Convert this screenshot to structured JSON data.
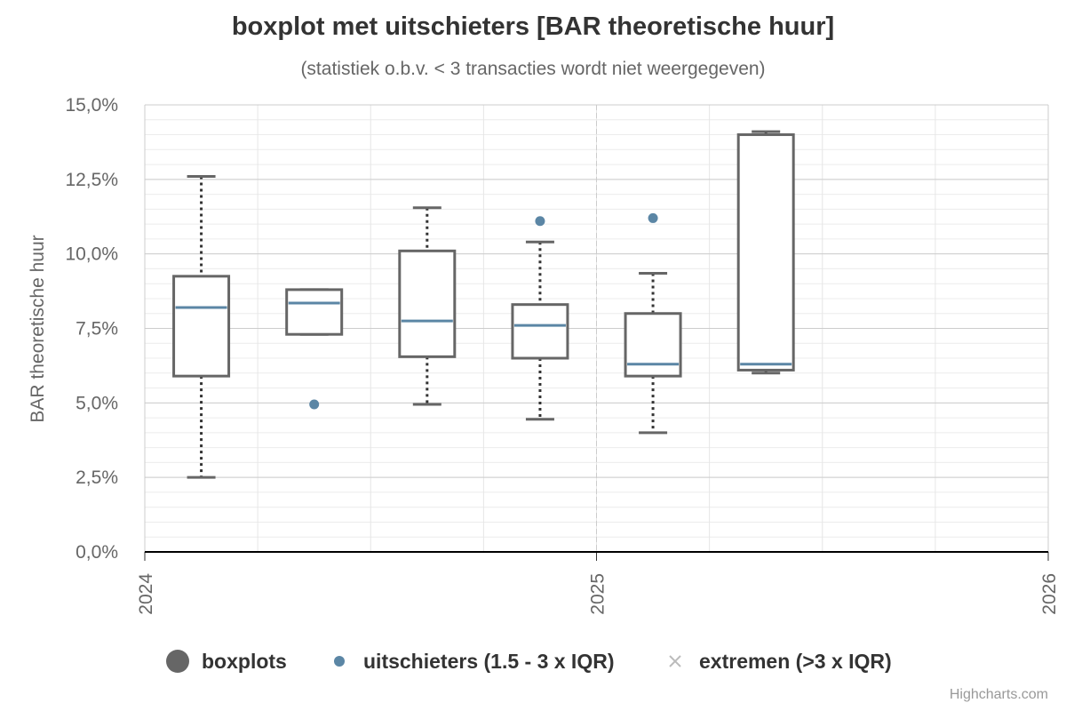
{
  "chart_data": {
    "type": "boxplot",
    "title": "boxplot met uitschieters [BAR theoretische huur]",
    "subtitle": "(statistiek o.b.v. < 3 transacties wordt niet weergegeven)",
    "ylabel": "BAR theoretische huur",
    "ylim": [
      0,
      15
    ],
    "y_ticks": [
      "0,0%",
      "2,5%",
      "5,0%",
      "7,5%",
      "10,0%",
      "12,5%",
      "15,0%"
    ],
    "x_ticks": [
      "2024",
      "2025",
      "2026"
    ],
    "xlim": [
      2024.0,
      2026.0
    ],
    "grid": true,
    "legend_position": "bottom",
    "legend": [
      {
        "label": "boxplots",
        "symbol": "circle",
        "color": "#666666"
      },
      {
        "label": "uitschieters (1.5 - 3 x IQR)",
        "symbol": "circle",
        "color": "#5b86a5"
      },
      {
        "label": "extremen (>3 x IQR)",
        "symbol": "cross",
        "color": "#bbbbbb"
      }
    ],
    "boxes": [
      {
        "x": 2024.125,
        "low": 2.5,
        "q1": 5.9,
        "median": 8.2,
        "q3": 9.25,
        "high": 12.6
      },
      {
        "x": 2024.375,
        "low": 7.3,
        "q1": 7.3,
        "median": 8.35,
        "q3": 8.8,
        "high": 8.8
      },
      {
        "x": 2024.625,
        "low": 4.95,
        "q1": 6.55,
        "median": 7.75,
        "q3": 10.1,
        "high": 11.55
      },
      {
        "x": 2024.875,
        "low": 4.45,
        "q1": 6.5,
        "median": 7.6,
        "q3": 8.3,
        "high": 10.4
      },
      {
        "x": 2025.125,
        "low": 4.0,
        "q1": 5.9,
        "median": 6.3,
        "q3": 8.0,
        "high": 9.35
      },
      {
        "x": 2025.375,
        "low": 6.0,
        "q1": 6.1,
        "median": 6.3,
        "q3": 14.0,
        "high": 14.1
      }
    ],
    "outliers": [
      {
        "x": 2024.375,
        "y": 4.95
      },
      {
        "x": 2024.875,
        "y": 11.1
      },
      {
        "x": 2025.125,
        "y": 11.2
      }
    ],
    "colors": {
      "box": "#666666",
      "median": "#5b86a5",
      "outlier": "#5b86a5",
      "extreme": "#bbbbbb"
    }
  },
  "credits": "Highcharts.com"
}
